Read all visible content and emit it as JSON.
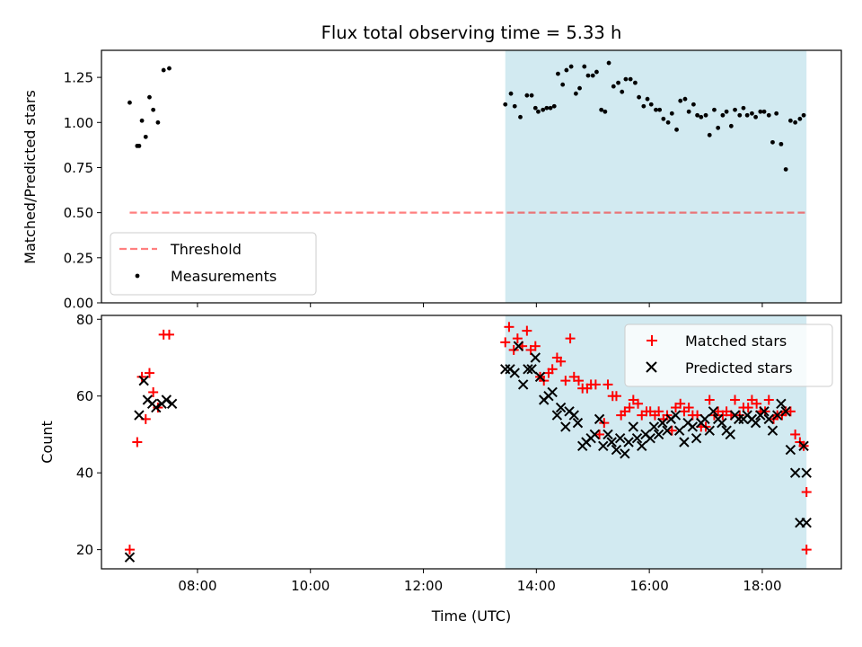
{
  "title": "Flux total observing time = 5.33 h",
  "colors": {
    "shade": "#add8e6",
    "threshold": "#ff0000",
    "matched": "#ff0000",
    "predicted": "#000000",
    "measure": "#000000"
  },
  "chart_data": [
    {
      "type": "scatter",
      "ylabel": "Matched/Predicted stars",
      "ylim": [
        0,
        1.4
      ],
      "xlim_hours": [
        6.3,
        19.4
      ],
      "yticks": [
        0,
        0.25,
        0.5,
        0.75,
        1.0,
        1.25
      ],
      "ytick_labels": [
        "0.00",
        "0.25",
        "0.50",
        "0.75",
        "1.00",
        "1.25"
      ],
      "shaded_span": {
        "from": "13:27",
        "to": "18:47"
      },
      "threshold": {
        "name": "Threshold",
        "value": 0.5,
        "from": "06:48",
        "to": "18:47"
      },
      "legend": {
        "position": "lower-left",
        "entries": [
          "Threshold",
          "Measurements"
        ]
      },
      "series": [
        {
          "name": "Measurements",
          "x": [
            "06:48",
            "06:56",
            "07:01",
            "07:05",
            "07:09",
            "07:13",
            "07:18",
            "07:24",
            "07:30",
            "06:58",
            "13:27",
            "13:33",
            "13:37",
            "13:43",
            "13:50",
            "13:55",
            "13:59",
            "14:02",
            "14:07",
            "14:11",
            "14:15",
            "14:19",
            "14:23",
            "14:28",
            "14:32",
            "14:37",
            "14:42",
            "14:46",
            "14:51",
            "14:55",
            "15:00",
            "15:04",
            "15:09",
            "15:13",
            "15:17",
            "15:22",
            "15:27",
            "15:31",
            "15:35",
            "15:40",
            "15:45",
            "15:49",
            "15:54",
            "15:58",
            "16:02",
            "16:07",
            "16:11",
            "16:15",
            "16:20",
            "16:24",
            "16:29",
            "16:33",
            "16:38",
            "16:42",
            "16:47",
            "16:51",
            "16:55",
            "17:00",
            "17:04",
            "17:09",
            "17:13",
            "17:18",
            "17:22",
            "17:27",
            "17:31",
            "17:36",
            "17:40",
            "17:44",
            "17:49",
            "17:53",
            "17:58",
            "18:02",
            "18:07",
            "18:11",
            "18:15",
            "18:20",
            "18:25",
            "18:30",
            "18:35",
            "18:40",
            "18:44"
          ],
          "y": [
            1.11,
            0.87,
            1.01,
            0.92,
            1.14,
            1.07,
            1.0,
            1.29,
            1.3,
            0.87,
            1.1,
            1.16,
            1.09,
            1.03,
            1.15,
            1.15,
            1.08,
            1.06,
            1.07,
            1.08,
            1.08,
            1.09,
            1.27,
            1.21,
            1.29,
            1.31,
            1.16,
            1.19,
            1.31,
            1.26,
            1.26,
            1.28,
            1.07,
            1.06,
            1.33,
            1.2,
            1.22,
            1.17,
            1.24,
            1.24,
            1.22,
            1.14,
            1.09,
            1.13,
            1.1,
            1.07,
            1.07,
            1.02,
            1.0,
            1.05,
            0.96,
            1.12,
            1.13,
            1.06,
            1.1,
            1.04,
            1.03,
            1.04,
            0.93,
            1.07,
            0.97,
            1.04,
            1.06,
            0.98,
            1.07,
            1.04,
            1.08,
            1.04,
            1.05,
            1.03,
            1.06,
            1.06,
            1.04,
            0.89,
            1.05,
            0.88,
            0.74,
            1.01,
            1.0,
            1.02,
            1.04
          ]
        }
      ]
    },
    {
      "type": "scatter",
      "ylabel": "Count",
      "xlabel": "Time (UTC)",
      "ylim": [
        15,
        81
      ],
      "xlim_hours": [
        6.3,
        19.4
      ],
      "yticks": [
        20,
        40,
        60,
        80
      ],
      "ytick_labels": [
        "20",
        "40",
        "60",
        "80"
      ],
      "xticks": [
        "08:00",
        "10:00",
        "12:00",
        "14:00",
        "16:00",
        "18:00"
      ],
      "shaded_span": {
        "from": "13:27",
        "to": "18:47"
      },
      "legend": {
        "position": "top-right",
        "entries": [
          "Matched stars",
          "Predicted stars"
        ]
      },
      "series": [
        {
          "name": "Matched stars",
          "x": [
            "06:48",
            "06:56",
            "07:01",
            "07:05",
            "07:09",
            "07:13",
            "07:18",
            "07:24",
            "07:30",
            "13:27",
            "13:31",
            "13:36",
            "13:40",
            "13:45",
            "13:50",
            "13:54",
            "13:59",
            "14:04",
            "14:08",
            "14:13",
            "14:17",
            "14:22",
            "14:26",
            "14:31",
            "14:36",
            "14:40",
            "14:45",
            "14:49",
            "14:54",
            "14:58",
            "15:03",
            "15:07",
            "15:12",
            "15:16",
            "15:21",
            "15:25",
            "15:30",
            "15:34",
            "15:39",
            "15:43",
            "15:48",
            "15:52",
            "15:57",
            "16:01",
            "16:06",
            "16:10",
            "16:15",
            "16:19",
            "16:24",
            "16:28",
            "16:33",
            "16:37",
            "16:42",
            "16:46",
            "16:51",
            "16:55",
            "17:00",
            "17:04",
            "17:09",
            "17:13",
            "17:18",
            "17:22",
            "17:27",
            "17:31",
            "17:36",
            "17:40",
            "17:45",
            "17:49",
            "17:54",
            "17:58",
            "18:03",
            "18:07",
            "18:12",
            "18:16",
            "18:21",
            "18:25",
            "18:30",
            "18:35",
            "18:40",
            "18:44",
            "18:47",
            "18:47"
          ],
          "y": [
            20,
            48,
            65,
            54,
            66,
            61,
            57,
            76,
            76,
            74,
            78,
            72,
            75,
            73,
            77,
            72,
            73,
            65,
            64,
            66,
            67,
            70,
            69,
            64,
            75,
            65,
            64,
            62,
            62,
            63,
            63,
            50,
            53,
            63,
            60,
            60,
            55,
            56,
            57,
            59,
            58,
            55,
            56,
            56,
            55,
            56,
            54,
            55,
            51,
            57,
            58,
            56,
            57,
            55,
            55,
            52,
            52,
            59,
            55,
            56,
            55,
            56,
            55,
            59,
            55,
            57,
            57,
            59,
            58,
            56,
            56,
            59,
            54,
            55,
            55,
            56,
            56,
            50,
            48,
            47,
            35,
            20
          ]
        },
        {
          "name": "Predicted stars",
          "x": [
            "06:48",
            "06:58",
            "07:03",
            "07:07",
            "07:12",
            "07:16",
            "07:22",
            "07:27",
            "07:33",
            "13:27",
            "13:32",
            "13:37",
            "13:41",
            "13:46",
            "13:51",
            "13:55",
            "13:59",
            "14:04",
            "14:08",
            "14:13",
            "14:17",
            "14:22",
            "14:26",
            "14:31",
            "14:35",
            "14:40",
            "14:44",
            "14:49",
            "14:53",
            "14:58",
            "15:02",
            "15:07",
            "15:11",
            "15:16",
            "15:20",
            "15:25",
            "15:29",
            "15:34",
            "15:38",
            "15:43",
            "15:47",
            "15:52",
            "15:56",
            "16:01",
            "16:05",
            "16:10",
            "16:14",
            "16:19",
            "16:23",
            "16:28",
            "16:32",
            "16:37",
            "16:41",
            "16:46",
            "16:50",
            "16:55",
            "16:59",
            "17:04",
            "17:08",
            "17:13",
            "17:17",
            "17:22",
            "17:26",
            "17:31",
            "17:35",
            "17:40",
            "17:44",
            "17:49",
            "17:53",
            "17:58",
            "18:02",
            "18:07",
            "18:11",
            "18:16",
            "18:20",
            "18:25",
            "18:30",
            "18:35",
            "18:40",
            "18:44",
            "18:47",
            "18:47"
          ],
          "y": [
            18,
            55,
            64,
            59,
            58,
            57,
            58,
            59,
            58,
            67,
            67,
            66,
            73,
            63,
            67,
            67,
            70,
            65,
            59,
            60,
            61,
            55,
            57,
            52,
            56,
            55,
            53,
            47,
            48,
            49,
            50,
            54,
            47,
            50,
            48,
            46,
            49,
            45,
            48,
            52,
            49,
            47,
            50,
            49,
            52,
            50,
            53,
            51,
            54,
            55,
            51,
            48,
            53,
            52,
            49,
            53,
            54,
            51,
            56,
            54,
            53,
            51,
            50,
            55,
            54,
            54,
            55,
            54,
            53,
            55,
            56,
            54,
            51,
            55,
            58,
            56,
            46,
            40,
            27,
            47,
            40,
            27
          ]
        }
      ]
    }
  ]
}
